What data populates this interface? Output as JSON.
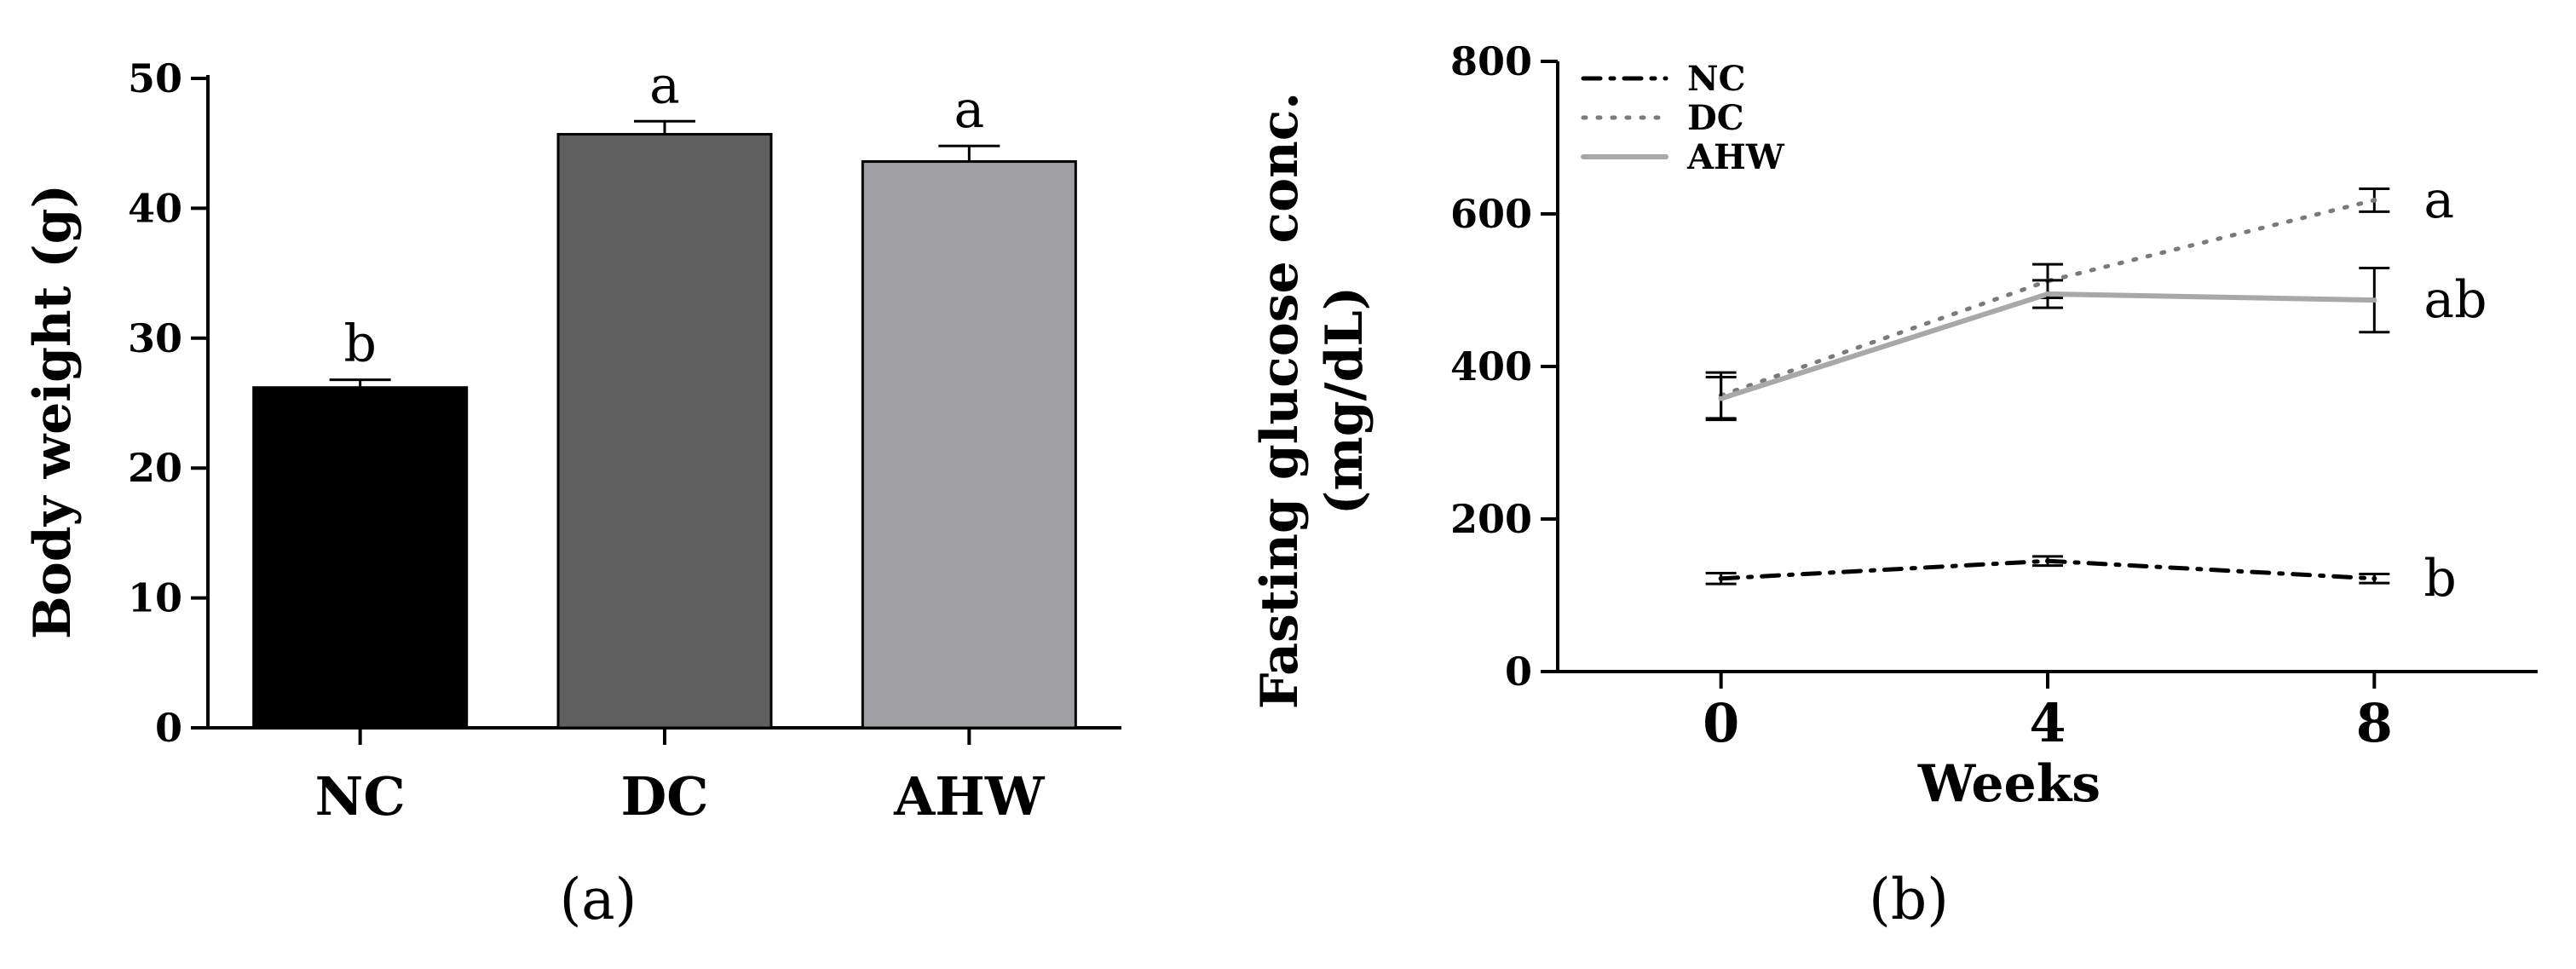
{
  "chart_data": [
    {
      "panel": "(a)",
      "type": "bar",
      "title": "",
      "xlabel": "",
      "ylabel": "Body weight (g)",
      "ylim": [
        0,
        50
      ],
      "yticks": [
        0,
        10,
        20,
        30,
        40,
        50
      ],
      "categories": [
        "NC",
        "DC",
        "AHW"
      ],
      "values": [
        26.2,
        45.7,
        43.6
      ],
      "errors": [
        0.6,
        1.0,
        1.2
      ],
      "significance": [
        "b",
        "a",
        "a"
      ],
      "colors": [
        "#000000",
        "#5f5f5f",
        "#a0a0a4"
      ],
      "grid": false
    },
    {
      "panel": "(b)",
      "type": "line",
      "title": "",
      "xlabel": "Weeks",
      "ylabel_lines": [
        "Fasting glucose conc.",
        "(mg/dL)"
      ],
      "x": [
        0,
        4,
        8
      ],
      "xlim": [
        -2,
        10
      ],
      "xticks": [
        0,
        4,
        8
      ],
      "ylim": [
        0,
        800
      ],
      "yticks": [
        0,
        200,
        400,
        600,
        800
      ],
      "grid": false,
      "legend_position": "top-left",
      "series": [
        {
          "name": "NC",
          "values": [
            122,
            145,
            122
          ],
          "errors": [
            7,
            6,
            6
          ],
          "color": "#000000",
          "style": "dashdot",
          "significance": "b"
        },
        {
          "name": "DC",
          "values": [
            362,
            512,
            618
          ],
          "errors": [
            30,
            22,
            15
          ],
          "color": "#7a7a7a",
          "style": "dotted",
          "significance": "a"
        },
        {
          "name": "AHW",
          "values": [
            358,
            495,
            487
          ],
          "errors": [
            28,
            18,
            42
          ],
          "color": "#a8a8a8",
          "style": "solid",
          "significance": "ab"
        }
      ]
    }
  ]
}
